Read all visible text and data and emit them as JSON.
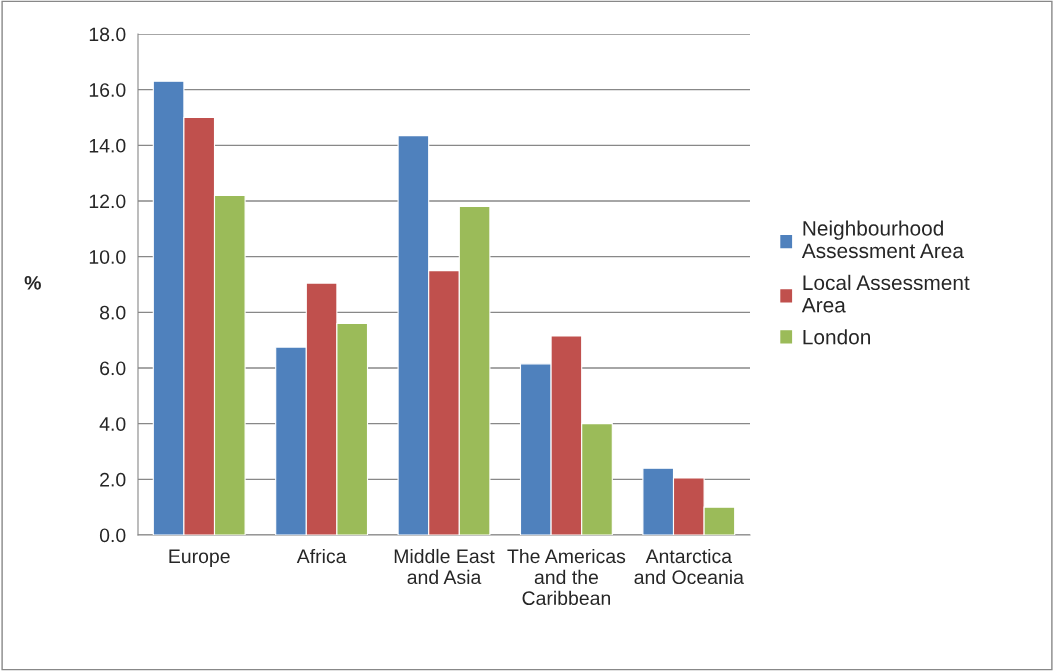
{
  "chart_data": {
    "type": "bar",
    "categories": [
      "Europe",
      "Africa",
      "Middle East and Asia",
      "The Americas and the Caribbean",
      "Antarctica and Oceania"
    ],
    "series": [
      {
        "name": "Neighbourhood Assessment Area",
        "color": "#4f81bd",
        "values": [
          16.3,
          6.75,
          14.35,
          6.15,
          2.4
        ]
      },
      {
        "name": "Local Assessment Area",
        "color": "#c0504d",
        "values": [
          15.0,
          9.05,
          9.5,
          7.15,
          2.05
        ]
      },
      {
        "name": "London",
        "color": "#9bbb59",
        "values": [
          12.2,
          7.6,
          11.8,
          4.0,
          1.0
        ]
      }
    ],
    "ylabel": "%",
    "ylim": [
      0,
      18
    ],
    "yticks": [
      {
        "value": 0,
        "label": "0.0"
      },
      {
        "value": 2,
        "label": "2.0"
      },
      {
        "value": 4,
        "label": "4.0"
      },
      {
        "value": 6,
        "label": "6.0"
      },
      {
        "value": 8,
        "label": "8.0"
      },
      {
        "value": 10,
        "label": "10.0"
      },
      {
        "value": 12,
        "label": "12.0"
      },
      {
        "value": 14,
        "label": "14.0"
      },
      {
        "value": 16,
        "label": "16.0"
      },
      {
        "value": 18,
        "label": "18.0"
      }
    ],
    "grid": "y",
    "legend": "right"
  }
}
